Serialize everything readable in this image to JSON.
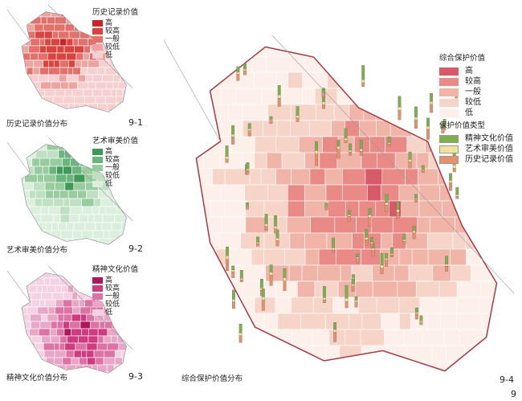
{
  "levels": [
    "高",
    "较高",
    "一般",
    "较低",
    "低"
  ],
  "panels": [
    {
      "title": "历史记录价值",
      "caption": "历史记录价值分布",
      "number": "9-1",
      "colors": [
        "#c8252a",
        "#d9443f",
        "#e3706a",
        "#eda3a0",
        "#f6d0d0"
      ]
    },
    {
      "title": "艺术审美价值",
      "caption": "艺术审美价值分布",
      "number": "9-2",
      "colors": [
        "#3f9a5a",
        "#6ab57c",
        "#98cc9f",
        "#bfe0c3",
        "#dcefde"
      ]
    },
    {
      "title": "精神文化价值",
      "caption": "精神文化价值分布",
      "number": "9-3",
      "colors": [
        "#b0155a",
        "#cf3b80",
        "#dd72a5",
        "#e9a7c8",
        "#f4d2e3"
      ]
    }
  ],
  "main": {
    "title": "综合保护价值",
    "caption": "综合保护价值分布",
    "number": "9-4",
    "colors": [
      "#d85a68",
      "#e98a86",
      "#f0b5a8",
      "#f6d5c8",
      "#fdf0ea"
    ],
    "type_title": "保护价值类型",
    "types": [
      {
        "label": "精神文化价值",
        "color": "#7fae4c"
      },
      {
        "label": "艺术审美价值",
        "color": "#f3e39a"
      },
      {
        "label": "历史记录价值",
        "color": "#e8906a"
      }
    ]
  },
  "figure_number": "9"
}
